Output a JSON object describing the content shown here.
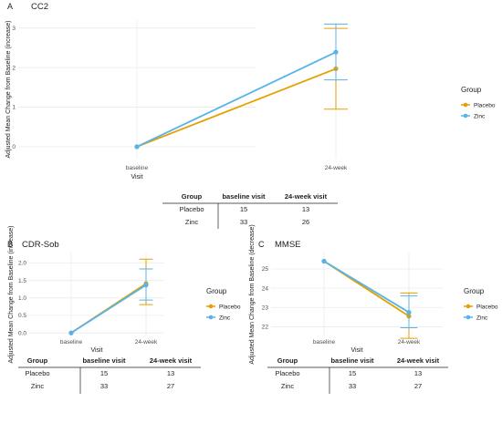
{
  "colors": {
    "placebo": "#E69F00",
    "zinc": "#56B4E9"
  },
  "chart_data": [
    {
      "type": "line",
      "panel": "A",
      "title": "CC2",
      "xlabel": "Visit",
      "ylabel": "Adjusted Mean Change from Baseline (increase)",
      "categories": [
        "baseline",
        "24-week"
      ],
      "ylim": [
        -0.3,
        3.2
      ],
      "yticks": [
        "0",
        "1",
        "2",
        "3"
      ],
      "legend_title": "Group",
      "legend_position": "right",
      "grid": true,
      "series": [
        {
          "name": "Placebo",
          "values": [
            0,
            1.97
          ],
          "error_low": [
            0,
            0.95
          ],
          "error_high": [
            0,
            2.99
          ]
        },
        {
          "name": "Zinc",
          "values": [
            0,
            2.39
          ],
          "error_low": [
            0,
            1.69
          ],
          "error_high": [
            0,
            3.1
          ]
        }
      ],
      "table": {
        "headers": [
          "Group",
          "baseline visit",
          "24-week visit"
        ],
        "rows": [
          [
            "Placebo",
            "15",
            "13"
          ],
          [
            "Zinc",
            "33",
            "26"
          ]
        ]
      }
    },
    {
      "type": "line",
      "panel": "B",
      "title": "CDR-Sob",
      "xlabel": "Visit",
      "ylabel": "Adjusted Mean Change from Baseline (increase)",
      "categories": [
        "baseline",
        "24-week"
      ],
      "ylim": [
        -0.1,
        2.3
      ],
      "yticks": [
        "0.0",
        "0.5",
        "1.0",
        "1.5",
        "2.0"
      ],
      "legend_title": "Group",
      "legend_position": "right",
      "grid": true,
      "series": [
        {
          "name": "Placebo",
          "values": [
            0,
            1.41
          ],
          "error_low": [
            0,
            0.81
          ],
          "error_high": [
            0,
            2.11
          ]
        },
        {
          "name": "Zinc",
          "values": [
            0,
            1.37
          ],
          "error_low": [
            0,
            0.94
          ],
          "error_high": [
            0,
            1.83
          ]
        }
      ],
      "table": {
        "headers": [
          "Group",
          "baseline visit",
          "24-week visit"
        ],
        "rows": [
          [
            "Placebo",
            "15",
            "13"
          ],
          [
            "Zinc",
            "33",
            "27"
          ]
        ]
      }
    },
    {
      "type": "line",
      "panel": "C",
      "title": "MMSE",
      "xlabel": "Visit",
      "ylabel": "Adjusted Mean Change from Baseline (decrease)",
      "categories": [
        "baseline",
        "24-week"
      ],
      "ylim": [
        21.5,
        25.85
      ],
      "yticks": [
        "22",
        "23",
        "24",
        "25"
      ],
      "legend_title": "Group",
      "legend_position": "right",
      "grid": true,
      "series": [
        {
          "name": "Placebo",
          "values": [
            25.4,
            22.55
          ],
          "error_low": [
            25.4,
            21.4
          ],
          "error_high": [
            25.4,
            23.75
          ]
        },
        {
          "name": "Zinc",
          "values": [
            25.4,
            22.75
          ],
          "error_low": [
            25.4,
            21.95
          ],
          "error_high": [
            25.4,
            23.6
          ]
        }
      ],
      "table": {
        "headers": [
          "Group",
          "baseline visit",
          "24-week visit"
        ],
        "rows": [
          [
            "Placebo",
            "15",
            "13"
          ],
          [
            "Zinc",
            "33",
            "27"
          ]
        ]
      }
    }
  ]
}
